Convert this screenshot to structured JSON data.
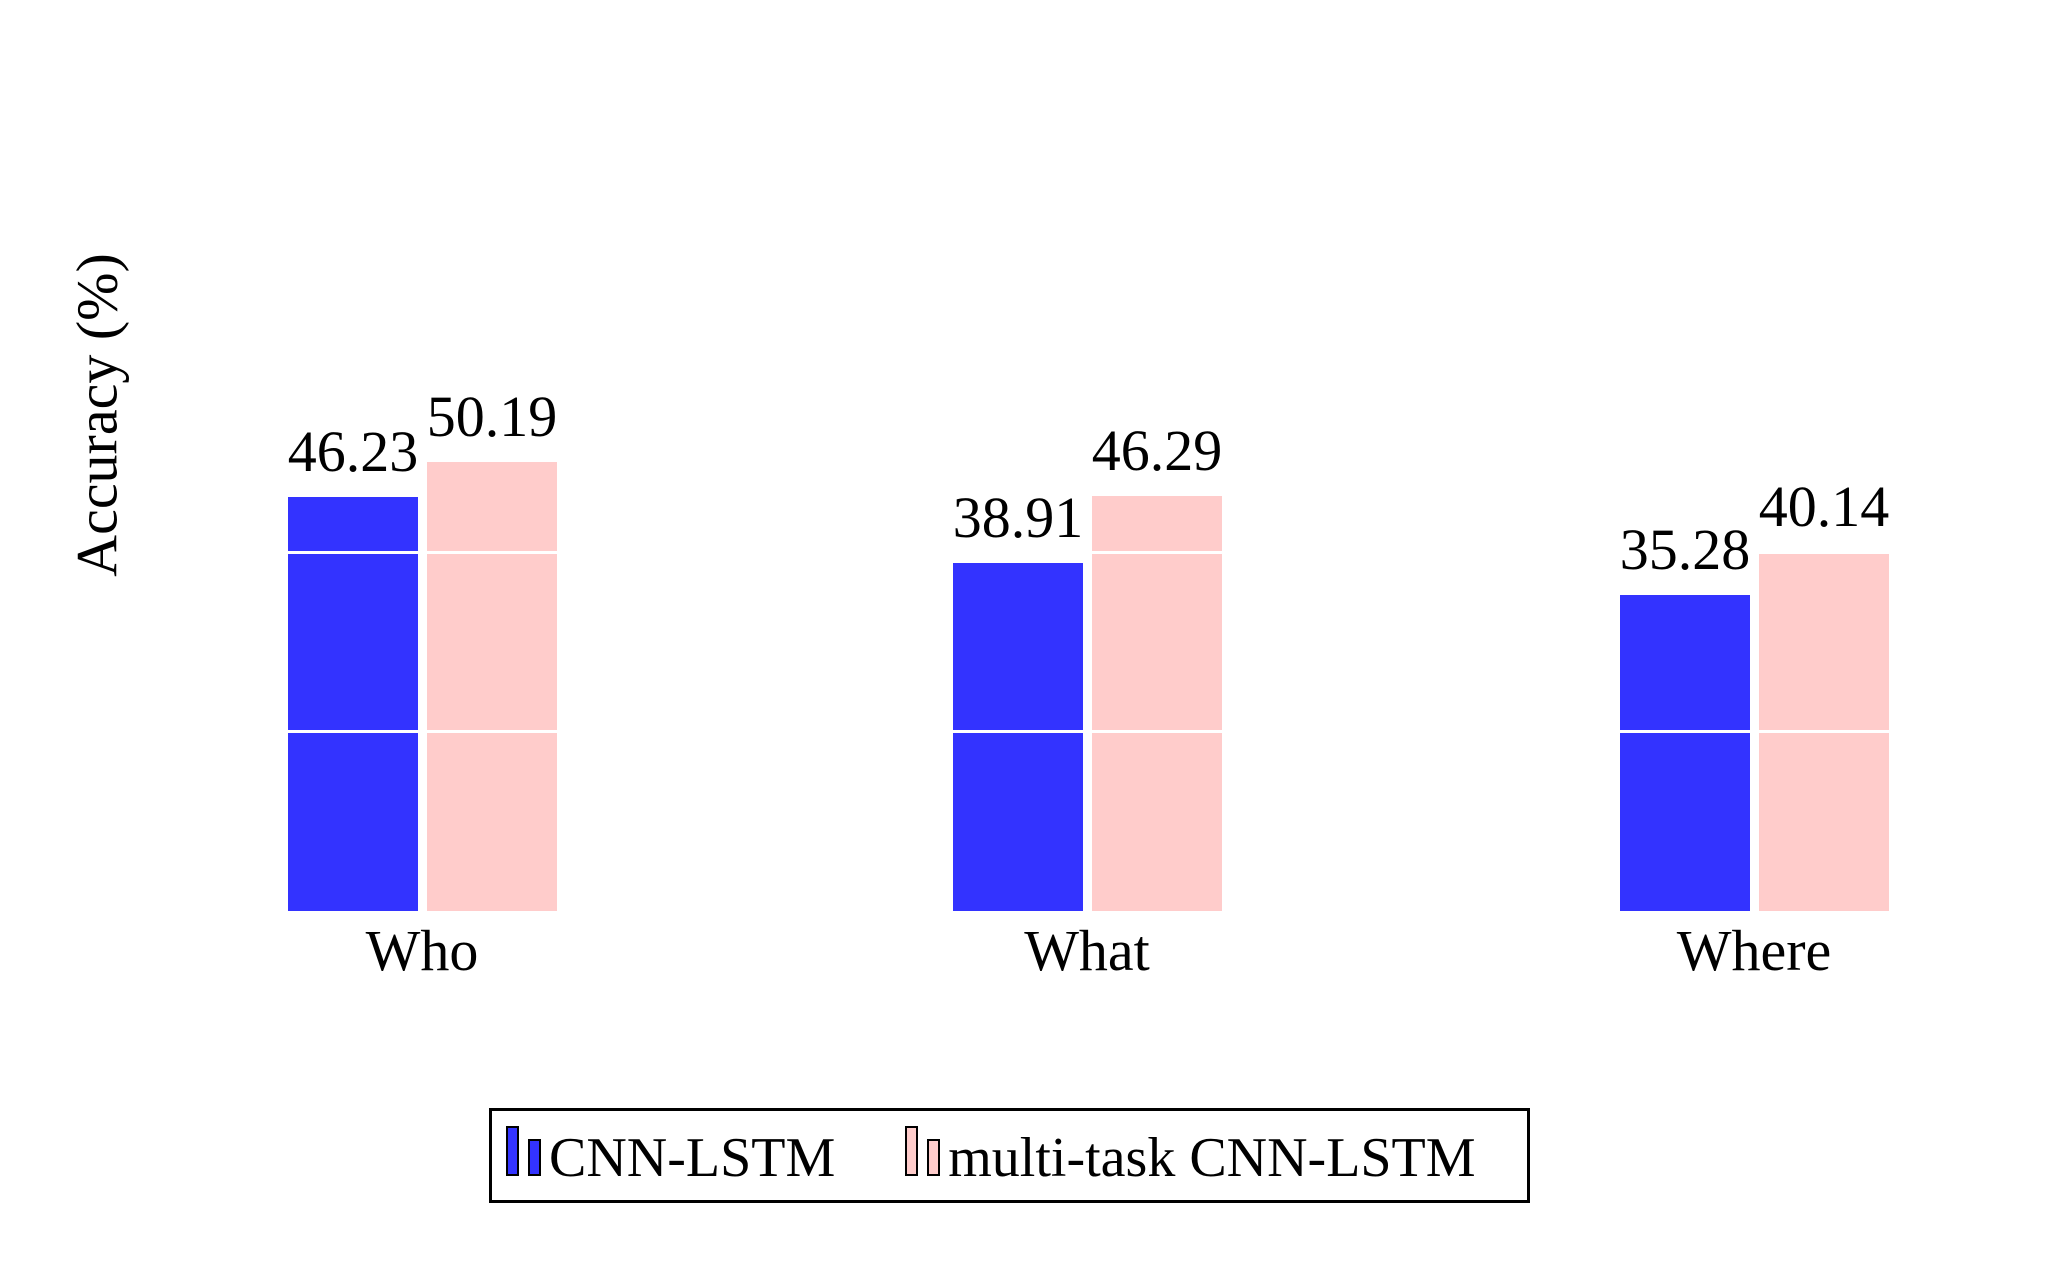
{
  "chart_data": {
    "type": "bar",
    "title": "",
    "ylabel": "Accuracy (%)",
    "xlabel": "",
    "categories": [
      "Who",
      "What",
      "Where"
    ],
    "series": [
      {
        "name": "CNN-LSTM",
        "color": "#3333ff",
        "values": [
          46.23,
          38.91,
          35.28
        ]
      },
      {
        "name": "multi-task CNN-LSTM",
        "color": "#ffcccb",
        "values": [
          50.19,
          46.29,
          40.14
        ]
      }
    ],
    "value_labels": [
      "46.23",
      "50.19",
      "38.91",
      "46.29",
      "35.28",
      "40.14"
    ],
    "ylim": [
      0,
      55
    ],
    "gridlines": [
      20,
      40
    ],
    "gridline_color": "#ffffff",
    "axes_drawn": false,
    "tick_labels_shown": false,
    "legend_position": "bottom",
    "legend_border_color": "#000000",
    "background_color": "#ffffff",
    "text_color": "#000000"
  }
}
